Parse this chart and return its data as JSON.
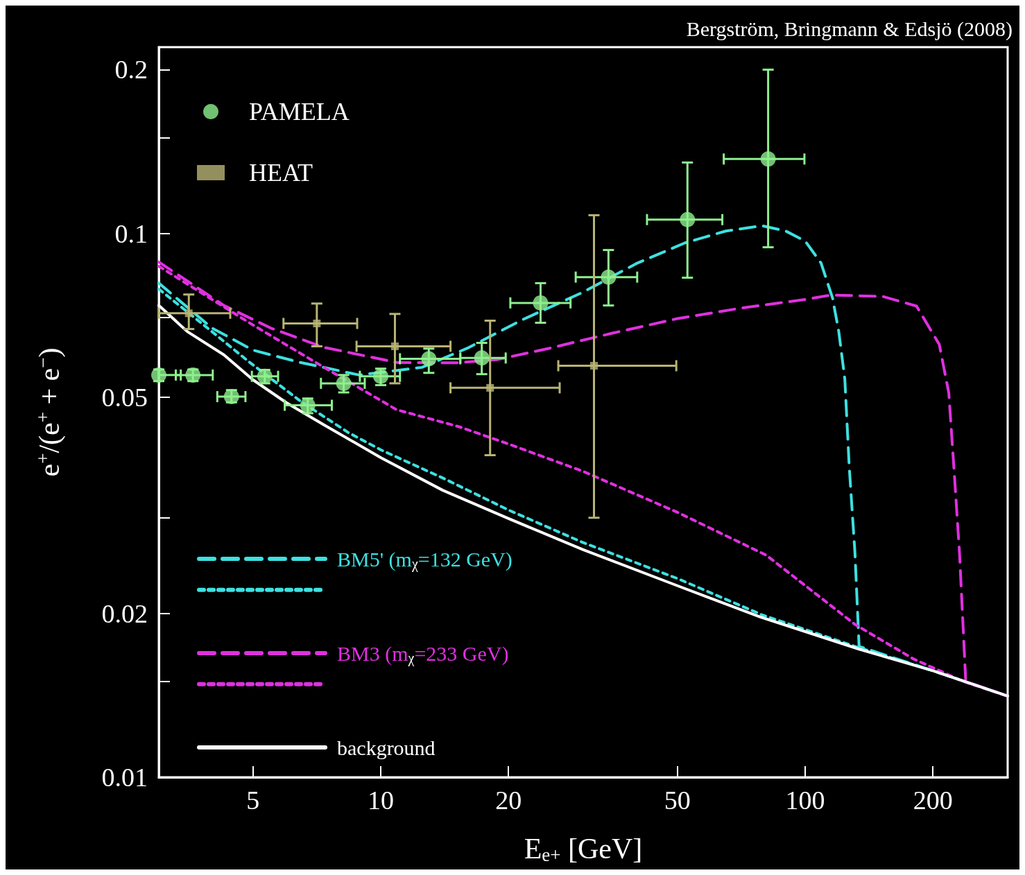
{
  "chart_data": {
    "type": "scatter",
    "xlabel": "E$_{e+}$ [GeV]",
    "ylabel": "e$^{+}$/(e$^{+}$ + e$^{−}$)",
    "annotations": [
      "Bergström, Bringmann & Edsjö (2008)"
    ],
    "log": "xy",
    "xlim": [
      3,
      300
    ],
    "ylim": [
      0.01,
      0.22
    ],
    "xticks": [
      5,
      10,
      20,
      50,
      100,
      200
    ],
    "yticks": [
      0.01,
      {
        "value": 0.015,
        "label": null
      },
      0.02,
      {
        "value": 0.03,
        "label": null
      },
      0.05,
      {
        "value": 0.07,
        "label": null
      },
      0.1,
      {
        "value": 0.15,
        "label": null
      },
      0.2
    ],
    "grid": false,
    "legend": "left",
    "series": [
      {
        "name": "PAMELA",
        "marker": "circle",
        "color": "#8ef08e",
        "x": [
          3.0,
          3.61,
          4.45,
          5.33,
          6.73,
          8.18,
          10.0,
          12.98,
          17.3,
          23.8,
          34.4,
          52.8,
          81.8
        ],
        "values": [
          0.0549,
          0.0549,
          0.0501,
          0.0546,
          0.0483,
          0.053,
          0.0546,
          0.0588,
          0.059,
          0.0745,
          0.0831,
          0.106,
          0.137
        ],
        "errors": [
          [
            0.0535,
            0.0562
          ],
          [
            0.0535,
            0.0562
          ],
          [
            0.0489,
            0.0515
          ],
          [
            0.053,
            0.0561
          ],
          [
            0.0467,
            0.0497
          ],
          [
            0.051,
            0.0549
          ],
          [
            0.0526,
            0.0564
          ],
          [
            0.0554,
            0.0614
          ],
          [
            0.0551,
            0.0629
          ],
          [
            0.0685,
            0.081
          ],
          [
            0.0737,
            0.0932
          ],
          [
            0.0829,
            0.135
          ],
          [
            0.0943,
            0.2
          ]
        ],
        "xerrors": [
          [
            3.0,
            3.38
          ],
          [
            3.29,
            4.02
          ],
          [
            4.12,
            4.8
          ],
          [
            4.97,
            5.73
          ],
          [
            5.94,
            7.67
          ],
          [
            7.23,
            9.17
          ],
          [
            8.93,
            11.1
          ],
          [
            11.1,
            15.4
          ],
          [
            15.4,
            19.7
          ],
          [
            20.2,
            28.0
          ],
          [
            28.8,
            40.2
          ],
          [
            42.4,
            63.8
          ],
          [
            64.3,
            99.6
          ]
        ]
      },
      {
        "name": "HEAT",
        "marker": "square",
        "color": "#b8b474",
        "x": [
          3.53,
          7.07,
          10.8,
          18.1,
          31.8
        ],
        "values": [
          0.0713,
          0.0683,
          0.062,
          0.052,
          0.0571
        ],
        "errors": [
          [
            0.0667,
            0.0772
          ],
          [
            0.062,
            0.0743
          ],
          [
            0.053,
            0.0711
          ],
          [
            0.0391,
            0.0691
          ],
          [
            0.03,
            0.108
          ]
        ],
        "xerrors": [
          [
            3.0,
            4.42
          ],
          [
            5.9,
            8.8
          ],
          [
            8.77,
            14.6
          ],
          [
            14.6,
            26.4
          ],
          [
            26.2,
            49.7
          ]
        ]
      },
      {
        "name": "BM5' (m$_{χ}$=132 GeV)",
        "type": "line",
        "line_style": "dashed",
        "marker": "none",
        "color": "#3ee0e0",
        "x": [
          3,
          4,
          5,
          6.4,
          8.9,
          12.5,
          16,
          21.5,
          30,
          40,
          52,
          65,
          79,
          90,
          100,
          109,
          116,
          120,
          124,
          127,
          131,
          134,
          200,
          300
        ],
        "values": [
          0.081,
          0.067,
          0.061,
          0.058,
          0.0549,
          0.0567,
          0.0615,
          0.0693,
          0.078,
          0.088,
          0.096,
          0.101,
          0.1033,
          0.101,
          0.0968,
          0.0882,
          0.0761,
          0.066,
          0.054,
          0.0373,
          0.0259,
          0.0174,
          0.0157,
          0.0141
        ]
      },
      {
        "type": "line",
        "line_style": "dotted",
        "marker": "none",
        "color": "#3ee0e0",
        "x": [
          3,
          4,
          4.9,
          6.5,
          8.4,
          10,
          14,
          20,
          30,
          50,
          79,
          134,
          200,
          300
        ],
        "values": [
          0.079,
          0.066,
          0.058,
          0.049,
          0.043,
          0.04,
          0.0355,
          0.031,
          0.027,
          0.0232,
          0.0199,
          0.0173,
          0.0157,
          0.0141
        ]
      },
      {
        "name": "BM3 (m$_{χ}$=233 GeV)",
        "type": "line",
        "line_style": "dashed",
        "marker": "none",
        "color": "#e030e0",
        "x": [
          3,
          4.27,
          5.5,
          7.3,
          10.9,
          15,
          18.8,
          25,
          35,
          50,
          70,
          100,
          115,
          152,
          183,
          207,
          218,
          224,
          231,
          239,
          300
        ],
        "values": [
          0.0886,
          0.0737,
          0.067,
          0.0618,
          0.0579,
          0.0578,
          0.0586,
          0.0615,
          0.0655,
          0.0697,
          0.0728,
          0.0756,
          0.077,
          0.0766,
          0.0735,
          0.0625,
          0.0509,
          0.0373,
          0.0259,
          0.015,
          0.0141
        ]
      },
      {
        "type": "line",
        "line_style": "dotted",
        "marker": "none",
        "color": "#e030e0",
        "x": [
          3,
          4.9,
          7,
          10.9,
          15.3,
          20,
          30,
          50,
          81,
          131,
          180,
          236,
          300
        ],
        "values": [
          0.087,
          0.0685,
          0.058,
          0.0474,
          0.0441,
          0.041,
          0.0365,
          0.0307,
          0.0256,
          0.0191,
          0.0165,
          0.015,
          0.0141
        ]
      },
      {
        "name": "background",
        "type": "line",
        "line_style": "solid",
        "marker": "none",
        "color": "#ffffff",
        "x": [
          3,
          3.5,
          4.27,
          5,
          6,
          7.3,
          10,
          14,
          20,
          30,
          50,
          78.6,
          134,
          200,
          300
        ],
        "values": [
          0.0737,
          0.066,
          0.0598,
          0.0538,
          0.0488,
          0.0446,
          0.0387,
          0.0337,
          0.0299,
          0.0262,
          0.0225,
          0.0197,
          0.0172,
          0.0157,
          0.0141
        ]
      }
    ]
  }
}
